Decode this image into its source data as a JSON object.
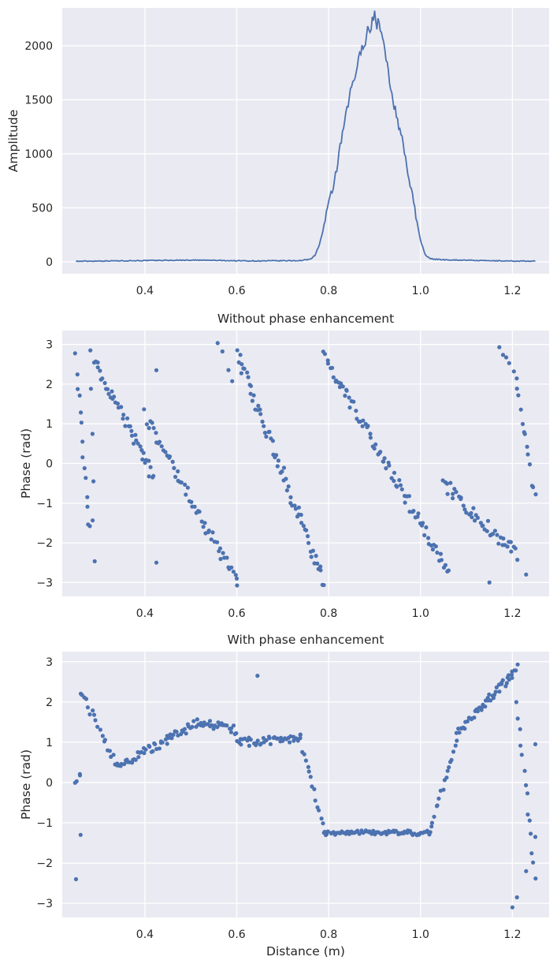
{
  "chart_data": [
    {
      "type": "line",
      "title": "",
      "xlabel": "",
      "ylabel": "Amplitude",
      "xlim": [
        0.22,
        1.28
      ],
      "ylim": [
        -110,
        2350
      ],
      "xticks": [
        "0.4",
        "0.6",
        "0.8",
        "1.0",
        "1.2"
      ],
      "yticks": [
        "0",
        "500",
        "1000",
        "1500",
        "2000"
      ],
      "grid": true,
      "color": "#4c72b0",
      "x": [
        0.25,
        0.3,
        0.35,
        0.4,
        0.45,
        0.5,
        0.55,
        0.6,
        0.65,
        0.7,
        0.74,
        0.76,
        0.77,
        0.78,
        0.79,
        0.8,
        0.81,
        0.82,
        0.83,
        0.84,
        0.85,
        0.86,
        0.87,
        0.875,
        0.88,
        0.885,
        0.89,
        0.895,
        0.9,
        0.905,
        0.91,
        0.915,
        0.92,
        0.93,
        0.94,
        0.95,
        0.96,
        0.97,
        0.98,
        0.99,
        1.0,
        1.01,
        1.02,
        1.03,
        1.05,
        1.1,
        1.15,
        1.2,
        1.25
      ],
      "y": [
        5,
        8,
        10,
        12,
        14,
        16,
        14,
        10,
        8,
        10,
        12,
        25,
        60,
        160,
        330,
        520,
        700,
        920,
        1180,
        1400,
        1620,
        1760,
        1950,
        2010,
        2050,
        2140,
        2150,
        2230,
        2300,
        2180,
        2250,
        2100,
        2000,
        1750,
        1500,
        1300,
        1150,
        900,
        650,
        420,
        200,
        70,
        30,
        25,
        20,
        15,
        10,
        8,
        5
      ]
    },
    {
      "type": "scatter",
      "title": "Without phase enhancement",
      "xlabel": "",
      "ylabel": "Phase (rad)",
      "xlim": [
        0.22,
        1.28
      ],
      "ylim": [
        -3.35,
        3.35
      ],
      "xticks": [
        "0.4",
        "0.6",
        "0.8",
        "1.0",
        "1.2"
      ],
      "yticks": [
        "3",
        "2",
        "1",
        "0",
        "−1",
        "−2",
        "−3"
      ],
      "grid": true,
      "color": "#4c72b0",
      "segments": [
        {
          "from": [
            0.25,
            2.6
          ],
          "to": [
            0.28,
            -1.7
          ],
          "n": 14
        },
        {
          "from": [
            0.28,
            2.8
          ],
          "to": [
            0.29,
            -2.6
          ],
          "n": 6
        },
        {
          "from": [
            0.29,
            2.6
          ],
          "to": [
            0.42,
            -0.4
          ],
          "n": 42
        },
        {
          "from": [
            0.4,
            1.2
          ],
          "to": [
            0.6,
            -3.0
          ],
          "n": 55
        },
        {
          "from": [
            0.56,
            3.0
          ],
          "to": [
            0.59,
            2.0
          ],
          "n": 4
        },
        {
          "from": [
            0.6,
            2.8
          ],
          "to": [
            0.79,
            -3.0
          ],
          "n": 65
        },
        {
          "from": [
            0.79,
            2.7
          ],
          "to": [
            1.06,
            -2.7
          ],
          "n": 80
        },
        {
          "from": [
            1.05,
            -0.5
          ],
          "to": [
            1.21,
            -2.3
          ],
          "n": 45
        },
        {
          "from": [
            1.17,
            3.0
          ],
          "to": [
            1.21,
            2.2
          ],
          "n": 6
        },
        {
          "from": [
            1.21,
            1.8
          ],
          "to": [
            1.25,
            -0.9
          ],
          "n": 12
        }
      ],
      "extra_points": [
        [
          0.425,
          2.35
        ],
        [
          0.425,
          -2.5
        ],
        [
          0.6,
          -2.9
        ],
        [
          1.15,
          -3.0
        ],
        [
          1.23,
          -2.8
        ]
      ]
    },
    {
      "type": "scatter",
      "title": "With phase enhancement",
      "xlabel": "Distance (m)",
      "ylabel": "Phase (rad)",
      "xlim": [
        0.22,
        1.28
      ],
      "ylim": [
        -3.35,
        3.25
      ],
      "xticks": [
        "0.4",
        "0.6",
        "0.8",
        "1.0",
        "1.2"
      ],
      "yticks": [
        "3",
        "2",
        "1",
        "0",
        "−1",
        "−2",
        "−3"
      ],
      "grid": true,
      "color": "#4c72b0",
      "segments": [
        {
          "from": [
            0.25,
            -0.1
          ],
          "to": [
            0.26,
            0.2
          ],
          "n": 4
        },
        {
          "from": [
            0.26,
            2.3
          ],
          "to": [
            0.34,
            0.4
          ],
          "n": 20
        },
        {
          "from": [
            0.34,
            0.4
          ],
          "to": [
            0.52,
            1.5
          ],
          "n": 55
        },
        {
          "from": [
            0.52,
            1.5
          ],
          "to": [
            0.6,
            1.3
          ],
          "n": 25
        },
        {
          "from": [
            0.6,
            1.0
          ],
          "to": [
            0.74,
            1.1
          ],
          "n": 40
        },
        {
          "from": [
            0.74,
            1.0
          ],
          "to": [
            0.79,
            -1.2
          ],
          "n": 15
        },
        {
          "from": [
            0.79,
            -1.25
          ],
          "to": [
            1.02,
            -1.25
          ],
          "n": 70
        },
        {
          "from": [
            1.02,
            -1.2
          ],
          "to": [
            1.08,
            1.0
          ],
          "n": 18
        },
        {
          "from": [
            1.08,
            1.2
          ],
          "to": [
            1.2,
            2.7
          ],
          "n": 45
        },
        {
          "from": [
            1.2,
            2.7
          ],
          "to": [
            1.21,
            2.9
          ],
          "n": 4
        },
        {
          "from": [
            1.21,
            1.9
          ],
          "to": [
            1.25,
            -2.3
          ],
          "n": 14
        }
      ],
      "extra_points": [
        [
          0.25,
          -2.4
        ],
        [
          0.26,
          -1.3
        ],
        [
          0.645,
          2.65
        ],
        [
          1.2,
          -3.1
        ],
        [
          1.21,
          -2.85
        ],
        [
          1.23,
          -2.2
        ],
        [
          1.25,
          -1.35
        ],
        [
          1.25,
          0.95
        ]
      ]
    }
  ]
}
